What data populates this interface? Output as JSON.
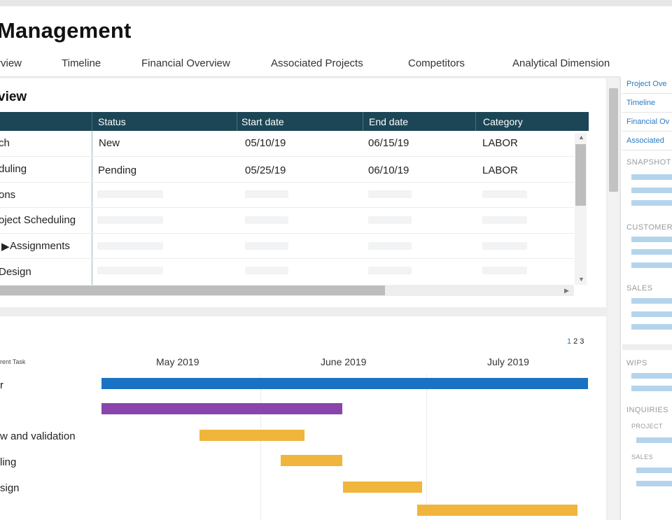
{
  "page": {
    "title": "Management"
  },
  "tabs": [
    {
      "label": "rview"
    },
    {
      "label": "Timeline"
    },
    {
      "label": "Financial Overview"
    },
    {
      "label": "Associated Projects"
    },
    {
      "label": "Competitors"
    },
    {
      "label": "Analytical Dimension"
    }
  ],
  "overview": {
    "title": "view",
    "columns": [
      "Status",
      "Start date",
      "End date",
      "Category"
    ],
    "rows": [
      {
        "name": "ch",
        "status": "New",
        "start": "05/10/19",
        "end": "06/15/19",
        "category": "LABOR"
      },
      {
        "name": "duling",
        "status": "Pending",
        "start": "05/25/19",
        "end": "06/10/19",
        "category": "LABOR"
      },
      {
        "name": "ons"
      },
      {
        "name": "oject Scheduling"
      },
      {
        "name": "Assignments"
      },
      {
        "name": "Design"
      }
    ]
  },
  "timeline": {
    "pager": [
      "1",
      "2",
      "3"
    ],
    "current_page": "1",
    "task_header": "rent Task",
    "months": [
      "May 2019",
      "June 2019",
      "July 2019"
    ],
    "tasks": [
      {
        "label": "r",
        "color": "#1a73c2"
      },
      {
        "label": "",
        "color": "#8a45ad"
      },
      {
        "label": "w and validation",
        "color": "#f0b53c"
      },
      {
        "label": "ling",
        "color": "#f0b53c"
      },
      {
        "label": "sign",
        "color": "#f0b53c"
      },
      {
        "label": "",
        "color": "#f0b53c"
      }
    ]
  },
  "right_panel": {
    "links": [
      "Project Ove",
      "Timeline",
      "Financial Ov",
      "Associated"
    ],
    "sections": {
      "snapshot": "SNAPSHOT",
      "customer": "CUSTOMER",
      "sales": "SALES",
      "wips": "WIPS",
      "inquiries": "INQUIRIES",
      "project": "PROJECT",
      "sales_sub": "SALES"
    }
  }
}
